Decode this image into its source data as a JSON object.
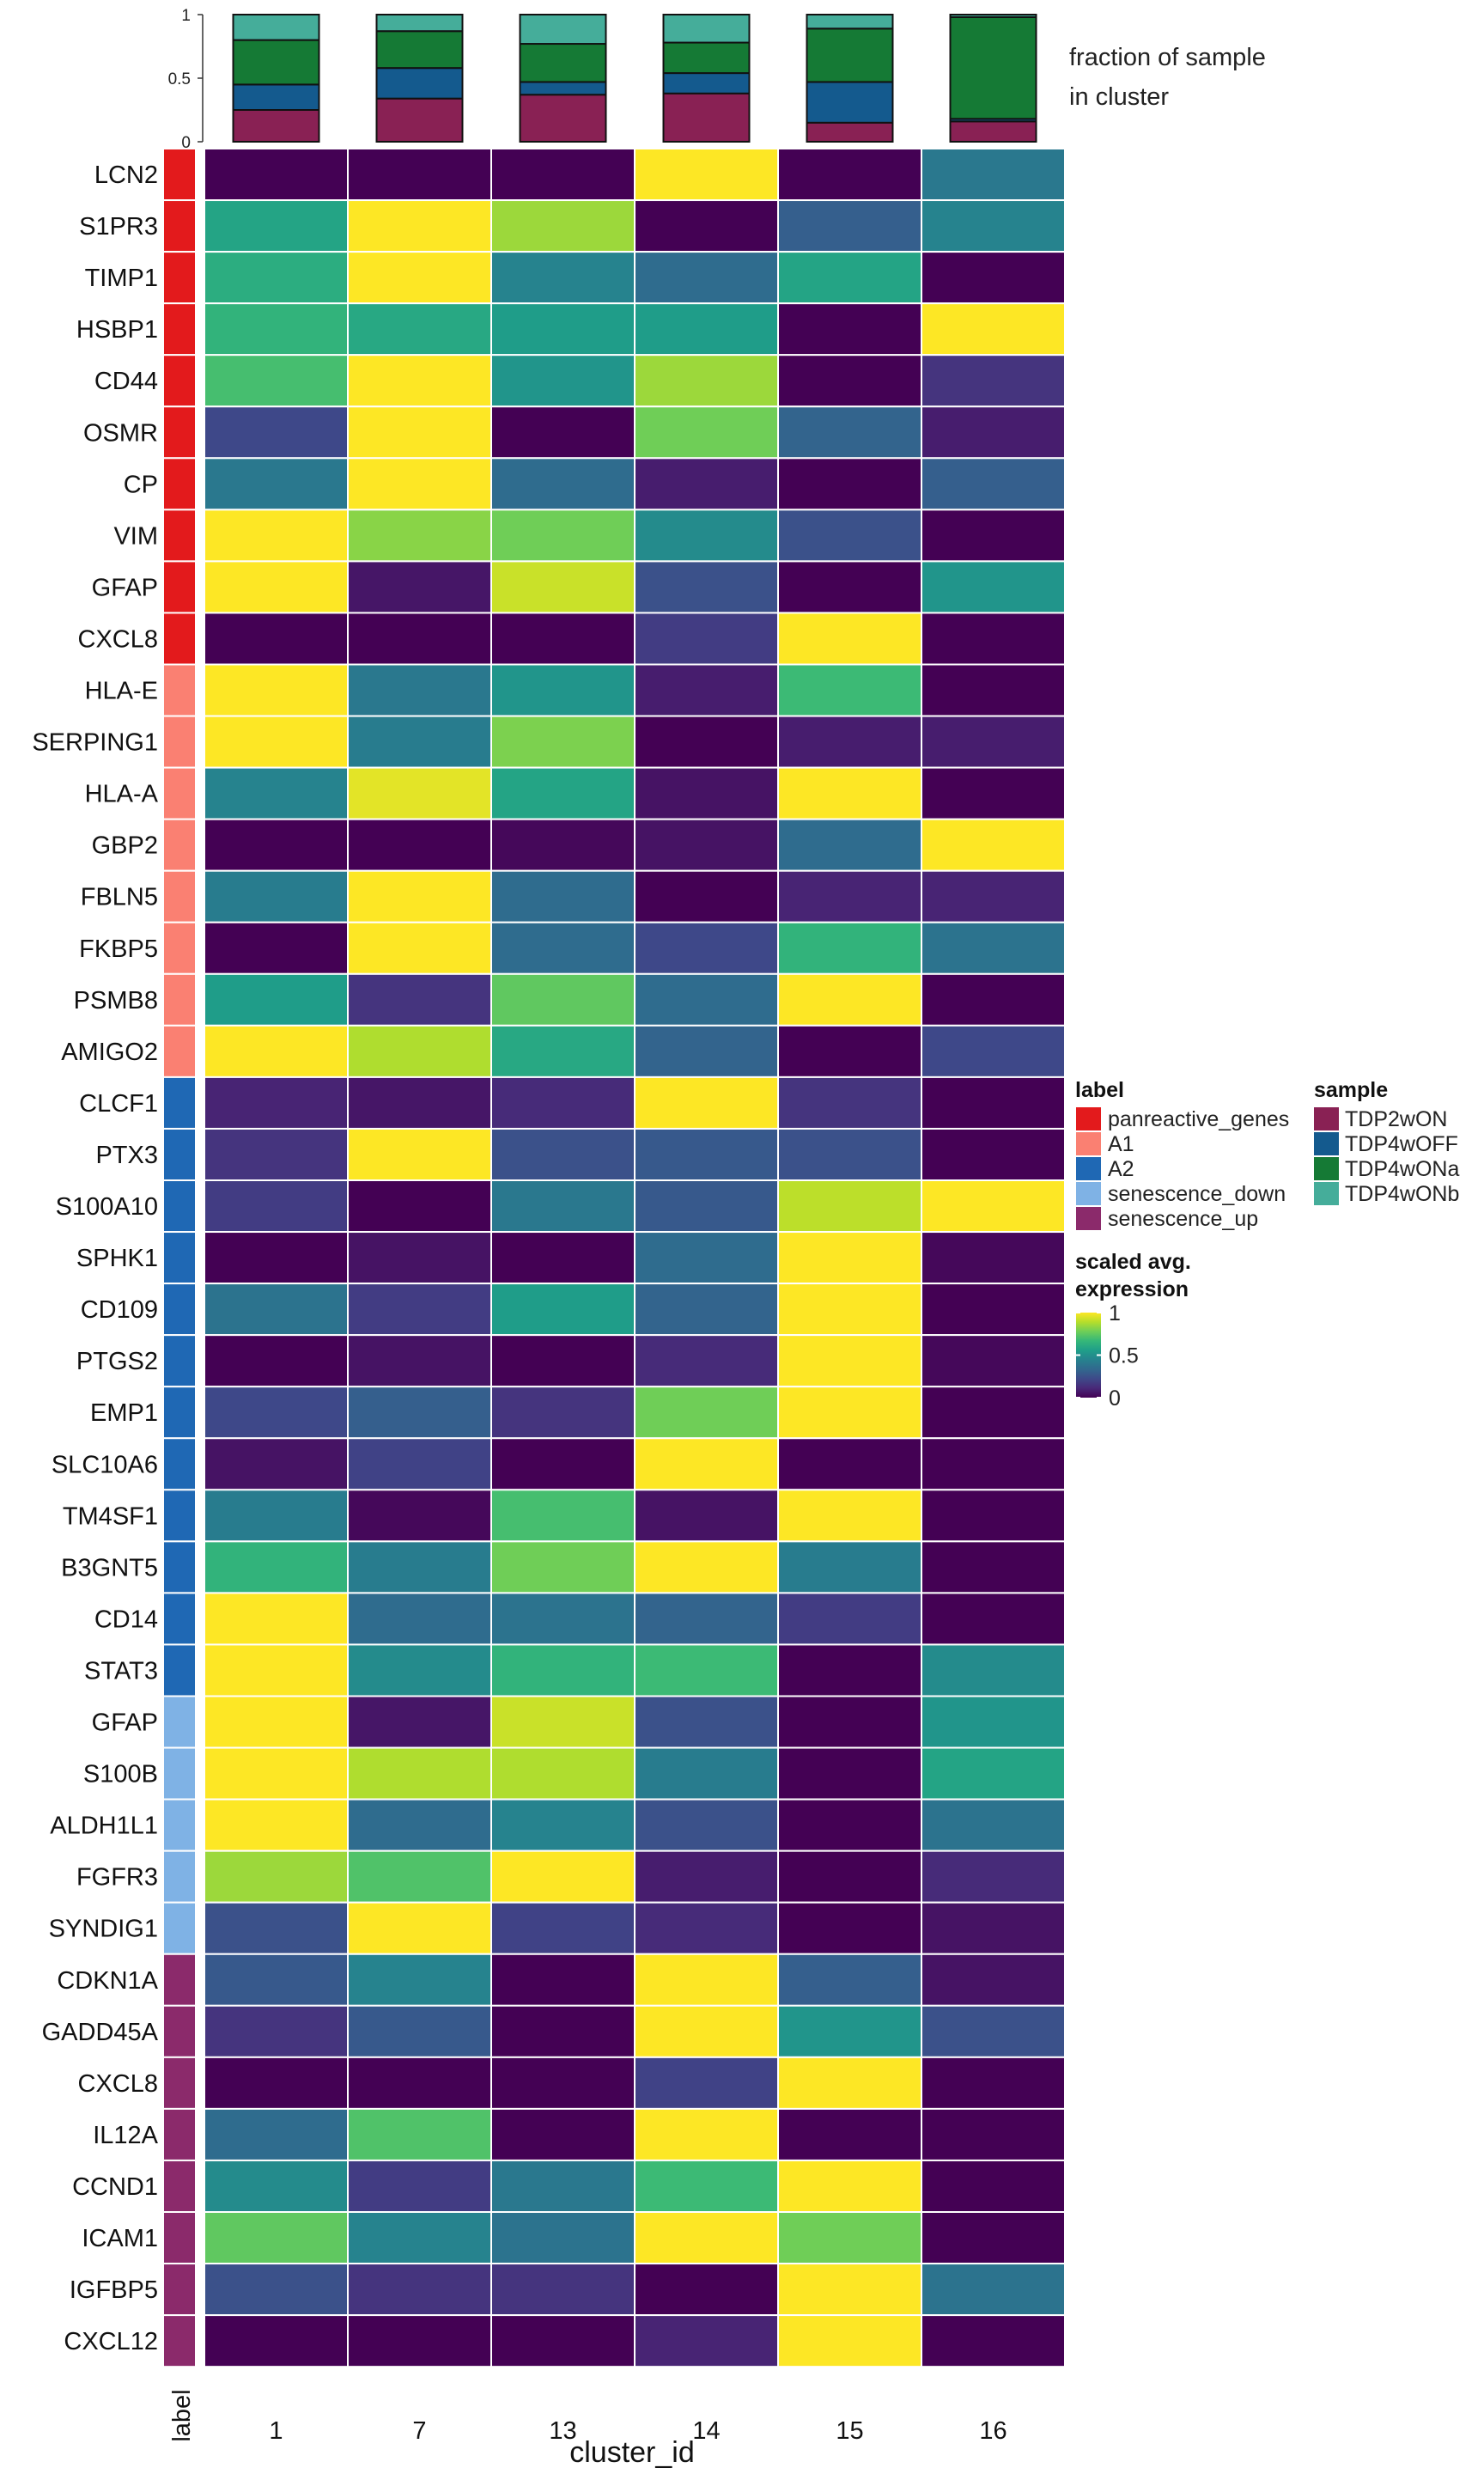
{
  "chart_data": {
    "type": "heatmap",
    "xlabel": "cluster_id",
    "label_axis_text": "label",
    "clusters": [
      "1",
      "7",
      "13",
      "14",
      "15",
      "16"
    ],
    "genes": [
      "LCN2",
      "S1PR3",
      "TIMP1",
      "HSBP1",
      "CD44",
      "OSMR",
      "CP",
      "VIM",
      "GFAP",
      "CXCL8",
      "HLA-E",
      "SERPING1",
      "HLA-A",
      "GBP2",
      "FBLN5",
      "FKBP5",
      "PSMB8",
      "AMIGO2",
      "CLCF1",
      "PTX3",
      "S100A10",
      "SPHK1",
      "CD109",
      "PTGS2",
      "EMP1",
      "SLC10A6",
      "TM4SF1",
      "B3GNT5",
      "CD14",
      "STAT3",
      "GFAP",
      "S100B",
      "ALDH1L1",
      "FGFR3",
      "SYNDIG1",
      "CDKN1A",
      "GADD45A",
      "CXCL8",
      "IL12A",
      "CCND1",
      "ICAM1",
      "IGFBP5",
      "CXCL12"
    ],
    "row_labels": [
      "panreactive_genes",
      "panreactive_genes",
      "panreactive_genes",
      "panreactive_genes",
      "panreactive_genes",
      "panreactive_genes",
      "panreactive_genes",
      "panreactive_genes",
      "panreactive_genes",
      "panreactive_genes",
      "A1",
      "A1",
      "A1",
      "A1",
      "A1",
      "A1",
      "A1",
      "A1",
      "A2",
      "A2",
      "A2",
      "A2",
      "A2",
      "A2",
      "A2",
      "A2",
      "A2",
      "A2",
      "A2",
      "A2",
      "senescence_down",
      "senescence_down",
      "senescence_down",
      "senescence_down",
      "senescence_down",
      "senescence_up",
      "senescence_up",
      "senescence_up",
      "senescence_up",
      "senescence_up",
      "senescence_up",
      "senescence_up",
      "senescence_up"
    ],
    "values": [
      [
        0.0,
        0.0,
        0.0,
        1.0,
        0.0,
        0.4
      ],
      [
        0.58,
        1.0,
        0.85,
        0.0,
        0.3,
        0.45
      ],
      [
        0.62,
        1.0,
        0.45,
        0.35,
        0.58,
        0.0
      ],
      [
        0.65,
        0.6,
        0.55,
        0.55,
        0.0,
        1.0
      ],
      [
        0.7,
        1.0,
        0.52,
        0.85,
        0.0,
        0.15
      ],
      [
        0.22,
        1.0,
        0.0,
        0.78,
        0.32,
        0.08
      ],
      [
        0.4,
        1.0,
        0.35,
        0.08,
        0.0,
        0.3
      ],
      [
        1.0,
        0.82,
        0.78,
        0.48,
        0.25,
        0.0
      ],
      [
        1.0,
        0.06,
        0.92,
        0.25,
        0.0,
        0.52
      ],
      [
        0.0,
        0.0,
        0.0,
        0.18,
        1.0,
        0.0
      ],
      [
        1.0,
        0.4,
        0.52,
        0.08,
        0.68,
        0.0
      ],
      [
        1.0,
        0.42,
        0.8,
        0.0,
        0.08,
        0.08
      ],
      [
        0.45,
        0.96,
        0.58,
        0.05,
        1.0,
        0.0
      ],
      [
        0.0,
        0.0,
        0.02,
        0.05,
        0.35,
        1.0
      ],
      [
        0.42,
        1.0,
        0.35,
        0.0,
        0.1,
        0.1
      ],
      [
        0.0,
        1.0,
        0.35,
        0.22,
        0.65,
        0.38
      ],
      [
        0.55,
        0.15,
        0.75,
        0.35,
        1.0,
        0.0
      ],
      [
        1.0,
        0.88,
        0.6,
        0.32,
        0.0,
        0.22
      ],
      [
        0.1,
        0.06,
        0.12,
        1.0,
        0.15,
        0.0
      ],
      [
        0.15,
        1.0,
        0.25,
        0.28,
        0.25,
        0.0
      ],
      [
        0.18,
        0.0,
        0.4,
        0.28,
        0.9,
        1.0
      ],
      [
        0.0,
        0.05,
        0.0,
        0.35,
        1.0,
        0.02
      ],
      [
        0.38,
        0.18,
        0.55,
        0.32,
        1.0,
        0.0
      ],
      [
        0.0,
        0.05,
        0.0,
        0.12,
        1.0,
        0.02
      ],
      [
        0.22,
        0.3,
        0.15,
        0.78,
        1.0,
        0.0
      ],
      [
        0.05,
        0.2,
        0.0,
        1.0,
        0.0,
        0.0
      ],
      [
        0.42,
        0.02,
        0.7,
        0.05,
        1.0,
        0.0
      ],
      [
        0.65,
        0.42,
        0.78,
        1.0,
        0.42,
        0.0
      ],
      [
        1.0,
        0.35,
        0.38,
        0.32,
        0.18,
        0.0
      ],
      [
        1.0,
        0.48,
        0.65,
        0.68,
        0.0,
        0.48
      ],
      [
        1.0,
        0.06,
        0.92,
        0.25,
        0.0,
        0.52
      ],
      [
        1.0,
        0.88,
        0.88,
        0.42,
        0.0,
        0.58
      ],
      [
        1.0,
        0.35,
        0.45,
        0.25,
        0.0,
        0.38
      ],
      [
        0.85,
        0.72,
        1.0,
        0.08,
        0.0,
        0.12
      ],
      [
        0.25,
        1.0,
        0.2,
        0.12,
        0.0,
        0.05
      ],
      [
        0.28,
        0.45,
        0.0,
        1.0,
        0.3,
        0.05
      ],
      [
        0.15,
        0.28,
        0.0,
        1.0,
        0.52,
        0.25
      ],
      [
        0.0,
        0.0,
        0.0,
        0.2,
        1.0,
        0.0
      ],
      [
        0.35,
        0.72,
        0.0,
        1.0,
        0.0,
        0.0
      ],
      [
        0.48,
        0.18,
        0.4,
        0.68,
        1.0,
        0.0
      ],
      [
        0.75,
        0.45,
        0.38,
        1.0,
        0.78,
        0.0
      ],
      [
        0.25,
        0.15,
        0.15,
        0.0,
        1.0,
        0.38
      ],
      [
        0.0,
        0.0,
        0.0,
        0.1,
        1.0,
        0.0
      ]
    ],
    "fraction_bars": {
      "title_line1": "fraction of sample",
      "title_line2": "in cluster",
      "ylim": [
        0,
        1
      ],
      "yticks": [
        "0",
        "0.5",
        "1"
      ],
      "ytick_values": [
        0,
        0.5,
        1
      ],
      "samples": [
        "TDP2wON",
        "TDP4wOFF",
        "TDP4wONa",
        "TDP4wONb"
      ],
      "fractions": [
        [
          0.25,
          0.2,
          0.35,
          0.2
        ],
        [
          0.34,
          0.24,
          0.29,
          0.13
        ],
        [
          0.37,
          0.1,
          0.3,
          0.23
        ],
        [
          0.38,
          0.16,
          0.24,
          0.22
        ],
        [
          0.15,
          0.32,
          0.42,
          0.11
        ],
        [
          0.16,
          0.02,
          0.8,
          0.02
        ]
      ]
    },
    "legend": {
      "label_title": "label",
      "label_entries": [
        "panreactive_genes",
        "A1",
        "A2",
        "senescence_down",
        "senescence_up"
      ],
      "sample_title": "sample",
      "sample_entries": [
        "TDP2wON",
        "TDP4wOFF",
        "TDP4wONa",
        "TDP4wONb"
      ],
      "scale_title_line1": "scaled avg.",
      "scale_title_line2": "expression",
      "scale_ticks": [
        "1",
        "0.5",
        "0"
      ],
      "scale_tick_values": [
        1,
        0.5,
        0
      ],
      "position": "right"
    },
    "colors": {
      "label": {
        "panreactive_genes": "#e31a1c",
        "A1": "#fa8072",
        "A2": "#1f68b4",
        "senescence_down": "#7fb2e5",
        "senescence_up": "#8b2a6b"
      },
      "sample": {
        "TDP2wON": "#892154",
        "TDP4wOFF": "#145a8e",
        "TDP4wONa": "#157a35",
        "TDP4wONb": "#45ad9a"
      },
      "viridis": [
        "#440154",
        "#482878",
        "#3e4989",
        "#31688e",
        "#26828e",
        "#1f9e89",
        "#35b779",
        "#6ece58",
        "#b5de2b",
        "#fde725"
      ]
    }
  }
}
